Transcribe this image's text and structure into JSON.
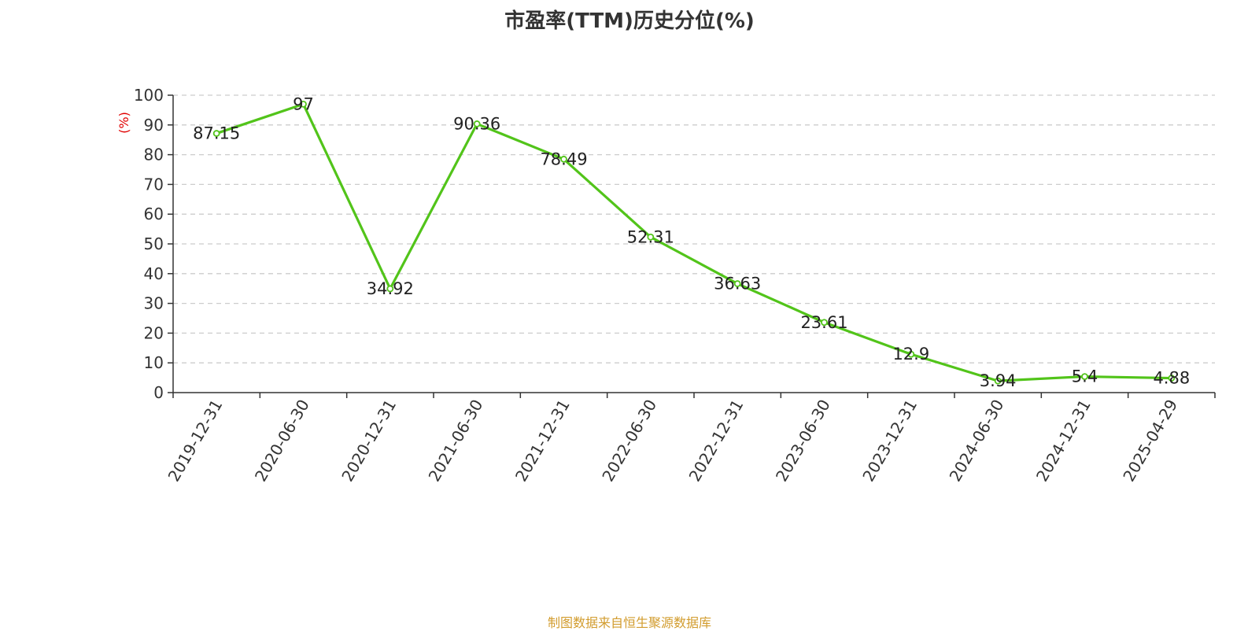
{
  "title": "市盈率(TTM)历史分位(%)",
  "source": "制图数据来自恒生聚源数据库",
  "colors": {
    "line": "#52c41a",
    "axis": "#333333",
    "grid": "#cccccc",
    "unit": "#e00000",
    "source": "#d29c2e"
  },
  "chart_data": {
    "type": "line",
    "title": "市盈率(TTM)历史分位(%)",
    "xlabel": "",
    "ylabel": "(%)",
    "ylim": [
      0,
      100
    ],
    "yticks": [
      "0",
      "10",
      "20",
      "30",
      "40",
      "50",
      "60",
      "70",
      "80",
      "90",
      "100"
    ],
    "grid": true,
    "categories": [
      "2019-12-31",
      "2020-06-30",
      "2020-12-31",
      "2021-06-30",
      "2021-12-31",
      "2022-06-30",
      "2022-12-31",
      "2023-06-30",
      "2023-12-31",
      "2024-06-30",
      "2024-12-31",
      "2025-04-29"
    ],
    "series": [
      {
        "values": [
          87.15,
          97,
          34.92,
          90.36,
          78.49,
          52.31,
          36.63,
          23.61,
          12.9,
          3.94,
          5.4,
          4.88
        ],
        "labels": [
          "87.15",
          "97",
          "34.92",
          "90.36",
          "78.49",
          "52.31",
          "36.63",
          "23.61",
          "12.9",
          "3.94",
          "5.4",
          "4.88"
        ]
      }
    ]
  }
}
